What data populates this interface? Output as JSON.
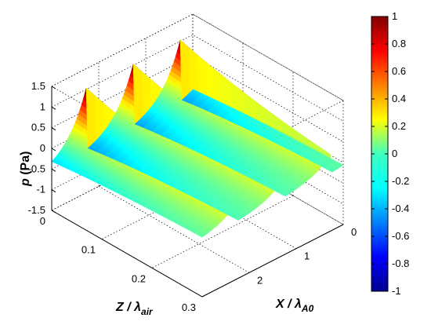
{
  "chart_data": {
    "type": "surface",
    "zlabel": {
      "main": "p",
      "unit": " (Pa)"
    },
    "xlabel": {
      "main": "X / λ",
      "sub": "A0"
    },
    "ylabel": {
      "main": "Z / λ",
      "sub": "air"
    },
    "xlim": [
      0,
      3
    ],
    "ylim": [
      0,
      0.3
    ],
    "zlim": [
      -1.5,
      1.5
    ],
    "x_ticks": [
      "0",
      "1",
      "2"
    ],
    "y_ticks": [
      "0",
      "0.1",
      "0.2",
      "0.3"
    ],
    "z_ticks": [
      "1.5",
      "1",
      "0.5",
      "0",
      "-0.5",
      "-1",
      "-1.5"
    ],
    "colorbar": {
      "limits": [
        -1,
        1
      ],
      "ticks": [
        "1",
        "0.8",
        "0.6",
        "0.4",
        "0.2",
        "0",
        "-0.2",
        "-0.4",
        "-0.6",
        "-0.8",
        "-1"
      ],
      "colormap": "jet"
    },
    "series": [
      {
        "crest_x": [
          0.25,
          1.25,
          2.25
        ],
        "crest_height_at_z0": 1.0,
        "trough_height_at_z0": -0.6,
        "decay_along_z": "exponential"
      }
    ]
  }
}
